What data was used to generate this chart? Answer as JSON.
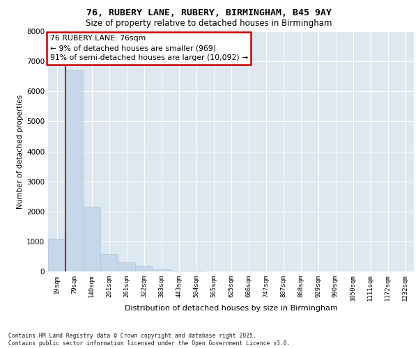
{
  "title_line1": "76, RUBERY LANE, RUBERY, BIRMINGHAM, B45 9AY",
  "title_line2": "Size of property relative to detached houses in Birmingham",
  "xlabel": "Distribution of detached houses by size in Birmingham",
  "ylabel": "Number of detached properties",
  "bar_color": "#c5d8ea",
  "bar_edge_color": "#a8c4d8",
  "background_color": "#dde8f0",
  "annotation_border_color": "#cc0000",
  "grid_color": "#ffffff",
  "categories": [
    "19sqm",
    "79sqm",
    "140sqm",
    "201sqm",
    "261sqm",
    "322sqm",
    "383sqm",
    "443sqm",
    "504sqm",
    "565sqm",
    "625sqm",
    "686sqm",
    "747sqm",
    "807sqm",
    "868sqm",
    "929sqm",
    "990sqm",
    "1050sqm",
    "1111sqm",
    "1172sqm",
    "1232sqm"
  ],
  "values": [
    1100,
    6700,
    2150,
    590,
    310,
    185,
    60,
    30,
    12,
    6,
    4,
    2,
    1,
    1,
    0,
    0,
    0,
    0,
    0,
    0,
    0
  ],
  "annotation_text": "76 RUBERY LANE: 76sqm\n← 9% of detached houses are smaller (969)\n91% of semi-detached houses are larger (10,092) →",
  "ylim": [
    0,
    8000
  ],
  "yticks": [
    0,
    1000,
    2000,
    3000,
    4000,
    5000,
    6000,
    7000,
    8000
  ],
  "footer_text": "Contains HM Land Registry data © Crown copyright and database right 2025.\nContains public sector information licensed under the Open Government Licence v3.0."
}
